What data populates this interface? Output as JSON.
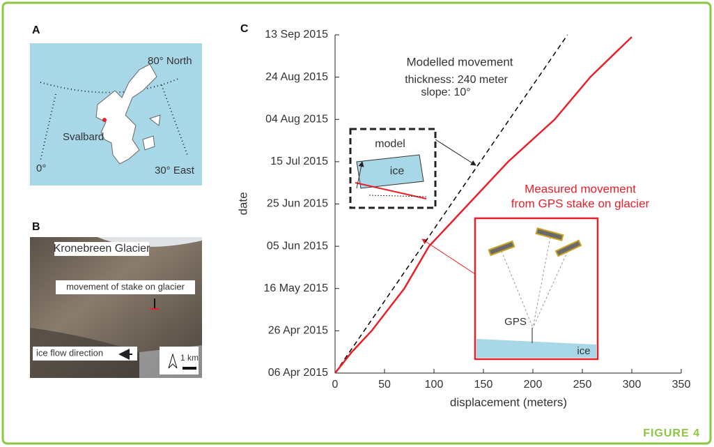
{
  "figure_label": "FIGURE 4",
  "panels": {
    "a": {
      "label": "A",
      "texts": [
        "80° North",
        "Svalbard",
        "0°",
        "30° East"
      ]
    },
    "b": {
      "label": "B",
      "texts": [
        "Kronebreen Glacier",
        "movement of stake on glacier",
        "ice flow direction",
        "1 km"
      ]
    }
  },
  "chart_data": {
    "type": "line",
    "panel_label": "C",
    "xlabel": "displacement (meters)",
    "ylabel": "date",
    "xlim": [
      0,
      350
    ],
    "xticks": [
      0,
      50,
      100,
      150,
      200,
      250,
      300,
      350
    ],
    "ylim": [
      "2015-04-06",
      "2015-09-13"
    ],
    "yticks": [
      {
        "value": "2015-04-06",
        "label": "06 Apr 2015"
      },
      {
        "value": "2015-04-26",
        "label": "26 Apr 2015"
      },
      {
        "value": "2015-05-16",
        "label": "16 May 2015"
      },
      {
        "value": "2015-06-05",
        "label": "05 Jun 2015"
      },
      {
        "value": "2015-06-25",
        "label": "25 Jun 2015"
      },
      {
        "value": "2015-07-15",
        "label": "15 Jul 2015"
      },
      {
        "value": "2015-08-04",
        "label": "04 Aug 2015"
      },
      {
        "value": "2015-08-24",
        "label": "24 Aug 2015"
      },
      {
        "value": "2015-09-13",
        "label": "13 Sep 2015"
      }
    ],
    "series": [
      {
        "color": "#000000",
        "dashed": true,
        "x": [
          0,
          235
        ],
        "y": [
          "2015-04-06",
          "2015-09-13"
        ]
      },
      {
        "color": "#e8202a",
        "dashed": false,
        "x": [
          0,
          17,
          37,
          70,
          95,
          135,
          175,
          222,
          240,
          258,
          280,
          300
        ],
        "y": [
          "2015-04-06",
          "2015-04-16",
          "2015-04-26",
          "2015-05-16",
          "2015-06-05",
          "2015-06-25",
          "2015-07-15",
          "2015-08-04",
          "2015-08-14",
          "2015-08-24",
          "2015-09-03",
          "2015-09-12"
        ]
      }
    ],
    "annotations": {
      "model_title": "Modelled movement",
      "model_thickness": "thickness: 240 meter",
      "model_slope": "slope: 10°",
      "model_box": "model",
      "model_ice": "ice",
      "measured_1": "Measured movement",
      "measured_2": "from GPS stake on glacier",
      "gps": "GPS",
      "gps_ice": "ice"
    }
  }
}
